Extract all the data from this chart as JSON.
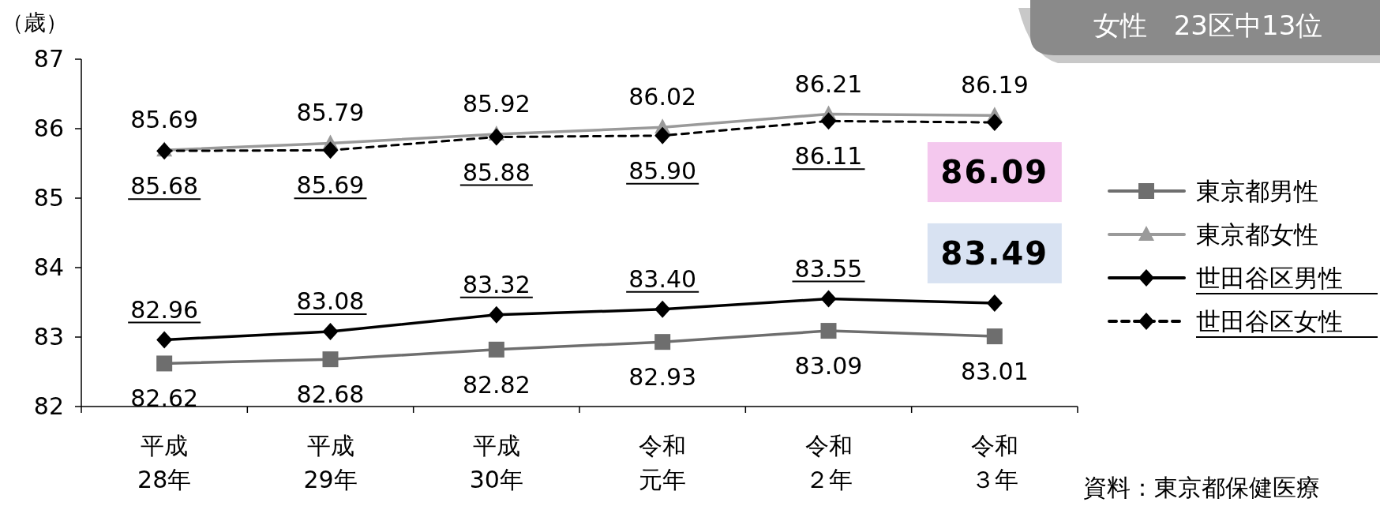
{
  "chart_data": {
    "type": "line",
    "ylabel": "（歳）",
    "categories": [
      "平成28年",
      "平成29年",
      "平成30年",
      "令和元年",
      "令和２年",
      "令和３年"
    ],
    "ylim": [
      82,
      87
    ],
    "yticks": [
      82,
      83,
      84,
      85,
      86,
      87
    ],
    "legend": "right",
    "grid": false,
    "series": [
      {
        "name": "東京都男性",
        "color": "#6e6e6e",
        "marker": "square",
        "line_style": "solid",
        "values": [
          82.62,
          82.68,
          82.82,
          82.93,
          83.09,
          83.01
        ],
        "value_labels": [
          "82.62",
          "82.68",
          "82.82",
          "82.93",
          "83.09",
          "83.01"
        ]
      },
      {
        "name": "東京都女性",
        "color": "#9a9a9a",
        "marker": "triangle",
        "line_style": "solid",
        "values": [
          85.69,
          85.79,
          85.92,
          86.02,
          86.21,
          86.19
        ],
        "value_labels": [
          "85.69",
          "85.79",
          "85.92",
          "86.02",
          "86.21",
          "86.19"
        ]
      },
      {
        "name": "世田谷区男性",
        "color": "#000000",
        "marker": "diamond",
        "line_style": "solid",
        "values": [
          82.96,
          83.08,
          83.32,
          83.4,
          83.55,
          83.49
        ],
        "value_labels": [
          "82.96",
          "83.08",
          "83.32",
          "83.40",
          "83.55",
          null
        ]
      },
      {
        "name": "世田谷区女性",
        "color": "#000000",
        "marker": "diamond",
        "line_style": "dashed",
        "values": [
          85.68,
          85.69,
          85.88,
          85.9,
          86.11,
          86.09
        ],
        "value_labels": [
          "85.68",
          "85.69",
          "85.88",
          "85.90",
          "86.11",
          null
        ]
      }
    ],
    "annotations": [
      {
        "text": "86.09",
        "x": "令和３年",
        "y": 86.09
      },
      {
        "text": "83.49",
        "x": "令和３年",
        "y": 83.49
      },
      "女性　23区中13位",
      "資料：東京都保健医療"
    ]
  }
}
